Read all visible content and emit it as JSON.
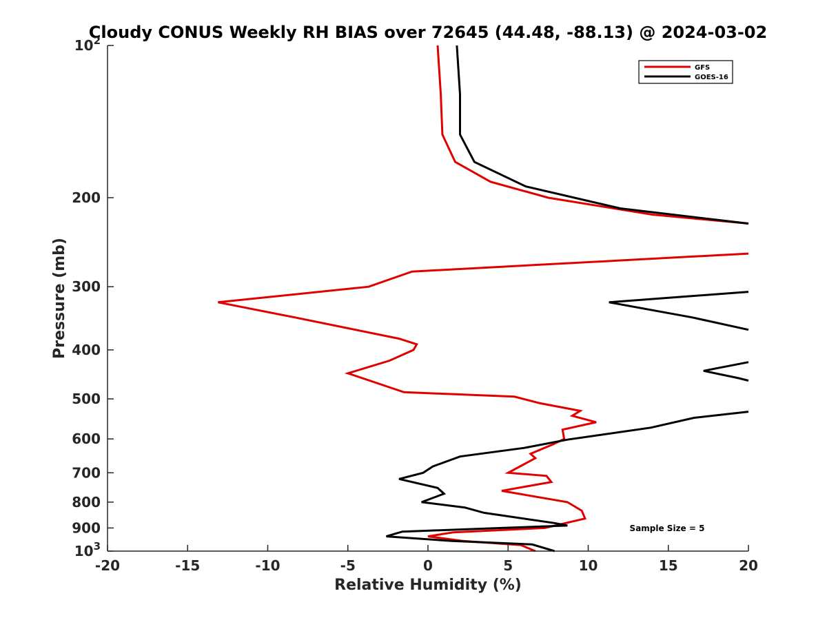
{
  "chart_data": {
    "type": "line",
    "title": "Cloudy CONUS Weekly RH BIAS over 72645 (44.48, -88.13) @ 2024-03-02",
    "xlabel": "Relative Humidity (%)",
    "ylabel": "Pressure (mb)",
    "xlim": [
      -20,
      20
    ],
    "ylim": [
      100,
      1000
    ],
    "y_scale": "log",
    "y_reversed": true,
    "grid": false,
    "legend_position": "top-right",
    "x_ticks": [
      "-20",
      "-15",
      "-10",
      "-5",
      "0",
      "5",
      "10",
      "15",
      "20"
    ],
    "y_ticks": [
      {
        "value": 100,
        "base": "10",
        "exp": "2"
      },
      {
        "value": 200,
        "label": "200"
      },
      {
        "value": 300,
        "label": "300"
      },
      {
        "value": 400,
        "label": "400"
      },
      {
        "value": 500,
        "label": "500"
      },
      {
        "value": 600,
        "label": "600"
      },
      {
        "value": 700,
        "label": "700"
      },
      {
        "value": 800,
        "label": "800"
      },
      {
        "value": 900,
        "label": "900"
      },
      {
        "value": 1000,
        "base": "10",
        "exp": "3"
      }
    ],
    "series": [
      {
        "name": "GFS",
        "color": "#e00000",
        "points": [
          [
            0.6,
            100
          ],
          [
            0.8,
            125
          ],
          [
            0.9,
            150
          ],
          [
            1.7,
            170
          ],
          [
            3.9,
            186
          ],
          [
            7.5,
            200
          ],
          [
            14,
            216
          ],
          [
            20,
            225
          ],
          [
            null,
            null
          ],
          [
            20,
            258
          ],
          [
            -1,
            280
          ],
          [
            -3.7,
            300
          ],
          [
            -13.1,
            322
          ],
          [
            -8.3,
            345
          ],
          [
            -1.8,
            380
          ],
          [
            -0.7,
            390
          ],
          [
            -0.9,
            400
          ],
          [
            -2.4,
            420
          ],
          [
            -5,
            445
          ],
          [
            -1.5,
            485
          ],
          [
            5.4,
            495
          ],
          [
            7,
            510
          ],
          [
            9.5,
            528
          ],
          [
            9,
            540
          ],
          [
            10.5,
            556
          ],
          [
            8.4,
            575
          ],
          [
            8.5,
            600
          ],
          [
            7.8,
            615
          ],
          [
            6.4,
            642
          ],
          [
            6.7,
            655
          ],
          [
            5,
            700
          ],
          [
            7.4,
            710
          ],
          [
            7.7,
            730
          ],
          [
            4.6,
            760
          ],
          [
            8.7,
            800
          ],
          [
            9.6,
            832
          ],
          [
            9.8,
            862
          ],
          [
            7.3,
            900
          ],
          [
            1.6,
            918
          ],
          [
            0,
            935
          ],
          [
            2.2,
            955
          ],
          [
            5.8,
            973
          ],
          [
            6.7,
            1000
          ]
        ]
      },
      {
        "name": "GOES-16",
        "color": "#000000",
        "points": [
          [
            1.8,
            100
          ],
          [
            2,
            125
          ],
          [
            2,
            150
          ],
          [
            2.9,
            170
          ],
          [
            6.1,
            190
          ],
          [
            12,
            210
          ],
          [
            20,
            225
          ],
          [
            null,
            null
          ],
          [
            20,
            307
          ],
          [
            11.3,
            322
          ],
          [
            16.5,
            345
          ],
          [
            20,
            365
          ],
          [
            null,
            null
          ],
          [
            20,
            423
          ],
          [
            17.2,
            440
          ],
          [
            19.4,
            455
          ],
          [
            20,
            460
          ],
          [
            null,
            null
          ],
          [
            20,
            530
          ],
          [
            16.6,
            545
          ],
          [
            13.9,
            570
          ],
          [
            8.7,
            602
          ],
          [
            6,
            625
          ],
          [
            2,
            650
          ],
          [
            0.3,
            680
          ],
          [
            -0.3,
            700
          ],
          [
            -1.8,
            720
          ],
          [
            0.6,
            750
          ],
          [
            1,
            770
          ],
          [
            -0.4,
            800
          ],
          [
            2.3,
            820
          ],
          [
            3.5,
            840
          ],
          [
            7.9,
            880
          ],
          [
            8.7,
            890
          ],
          [
            4.6,
            900
          ],
          [
            -1.6,
            915
          ],
          [
            -2.6,
            935
          ],
          [
            1.5,
            955
          ],
          [
            6.5,
            970
          ],
          [
            7.9,
            1000
          ]
        ]
      }
    ],
    "annotations": [
      "Sample Size = 5"
    ]
  }
}
